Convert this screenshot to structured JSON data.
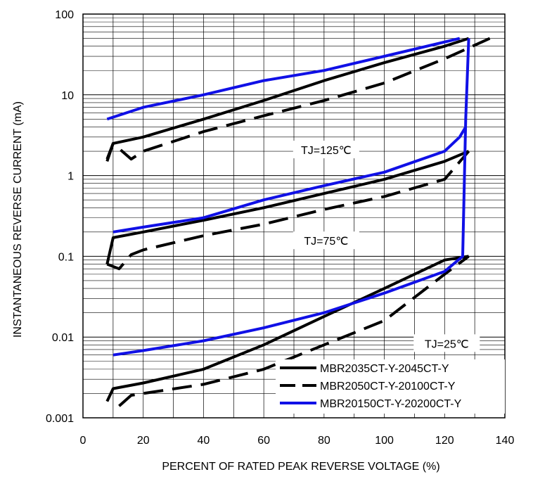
{
  "chart_data": {
    "type": "line",
    "title": "",
    "xlabel": "PERCENT OF RATED PEAK REVERSE VOLTAGE (%)",
    "ylabel": "INSTANTANEOUS REVERSE CURRENT (mA)",
    "xlim": [
      0,
      140
    ],
    "ylim": [
      0.001,
      100
    ],
    "yscale": "log",
    "x_ticks": [
      0,
      20,
      40,
      60,
      80,
      100,
      120,
      140
    ],
    "y_ticks": [
      0.001,
      0.01,
      0.1,
      1,
      10,
      100
    ],
    "x_tick_labels": [
      "0",
      "20",
      "40",
      "60",
      "80",
      "100",
      "120",
      "140"
    ],
    "y_tick_labels": [
      "0.001",
      "0.01",
      "0.1",
      "1",
      "10",
      "100"
    ],
    "grid": true,
    "legend_position": "bottom-right",
    "legend": [
      {
        "label": "MBR2035CT-Y-2045CT-Y",
        "style": "solid",
        "color": "#000000"
      },
      {
        "label": "MBR2050CT-Y-20100CT-Y",
        "style": "dashed",
        "color": "#000000"
      },
      {
        "label": "MBR20150CT-Y-20200CT-Y",
        "style": "solid",
        "color": "#1010e6"
      }
    ],
    "annotations": [
      {
        "text": "TJ=125℃",
        "x": 80,
        "y": 2.0
      },
      {
        "text": "TJ=75℃",
        "x": 80,
        "y": 0.15
      },
      {
        "text": "TJ=25℃",
        "x": 120,
        "y": 0.008
      }
    ],
    "series": [
      {
        "family": "MBR2035CT-Y-2045CT-Y",
        "temp": "TJ=125℃",
        "style": "solid",
        "color": "#000000",
        "x": [
          8,
          10,
          20,
          40,
          60,
          80,
          100,
          120,
          128
        ],
        "y": [
          1.6,
          2.5,
          3.0,
          5.0,
          8.5,
          15,
          25,
          40,
          50
        ]
      },
      {
        "family": "MBR2050CT-Y-20100CT-Y",
        "temp": "TJ=125℃",
        "style": "dashed",
        "color": "#000000",
        "x": [
          8,
          10,
          16,
          20,
          40,
          60,
          80,
          100,
          120,
          135
        ],
        "y": [
          1.5,
          2.5,
          1.6,
          2.0,
          3.5,
          5.5,
          8.5,
          14,
          28,
          50
        ]
      },
      {
        "family": "MBR20150CT-Y-20200CT-Y",
        "temp": "TJ=125℃",
        "style": "solid",
        "color": "#1010e6",
        "x": [
          8,
          20,
          40,
          60,
          80,
          100,
          125
        ],
        "y": [
          5,
          7,
          10,
          15,
          20,
          30,
          50
        ]
      },
      {
        "family": "MBR2035CT-Y-2045CT-Y",
        "temp": "TJ=75℃",
        "style": "solid",
        "color": "#000000",
        "x": [
          8,
          10,
          20,
          40,
          60,
          80,
          100,
          120,
          128
        ],
        "y": [
          0.08,
          0.17,
          0.2,
          0.28,
          0.4,
          0.6,
          0.9,
          1.5,
          2.0
        ]
      },
      {
        "family": "MBR2050CT-Y-20100CT-Y",
        "temp": "TJ=75℃",
        "style": "dashed",
        "color": "#000000",
        "x": [
          8,
          12,
          16,
          20,
          40,
          60,
          80,
          100,
          120,
          128
        ],
        "y": [
          0.08,
          0.07,
          0.105,
          0.12,
          0.18,
          0.25,
          0.38,
          0.55,
          0.9,
          2.0
        ]
      },
      {
        "family": "MBR20150CT-Y-20200CT-Y",
        "temp": "TJ=75℃",
        "style": "solid",
        "color": "#1010e6",
        "x": [
          10,
          20,
          40,
          60,
          80,
          100,
          120,
          125,
          127
        ],
        "y": [
          0.2,
          0.23,
          0.3,
          0.5,
          0.75,
          1.1,
          2.0,
          3.0,
          4.0
        ]
      },
      {
        "family": "MBR2035CT-Y-2045CT-Y",
        "temp": "TJ=25℃",
        "style": "solid",
        "color": "#000000",
        "x": [
          8,
          10,
          20,
          40,
          60,
          80,
          100,
          120,
          128
        ],
        "y": [
          0.0016,
          0.0023,
          0.0027,
          0.004,
          0.008,
          0.018,
          0.04,
          0.09,
          0.1
        ]
      },
      {
        "family": "MBR2050CT-Y-20100CT-Y",
        "temp": "TJ=25℃",
        "style": "dashed",
        "color": "#000000",
        "x": [
          12,
          16,
          20,
          40,
          60,
          80,
          100,
          120,
          128
        ],
        "y": [
          0.0014,
          0.0019,
          0.002,
          0.0026,
          0.004,
          0.008,
          0.016,
          0.06,
          0.1
        ]
      },
      {
        "family": "MBR20150CT-Y-20200CT-Y",
        "temp": "TJ=25℃",
        "style": "solid",
        "color": "#1010e6",
        "x": [
          10,
          20,
          40,
          60,
          80,
          100,
          120,
          126,
          127,
          128
        ],
        "y": [
          0.006,
          0.0068,
          0.009,
          0.013,
          0.02,
          0.035,
          0.065,
          0.1,
          5,
          50
        ]
      }
    ]
  }
}
